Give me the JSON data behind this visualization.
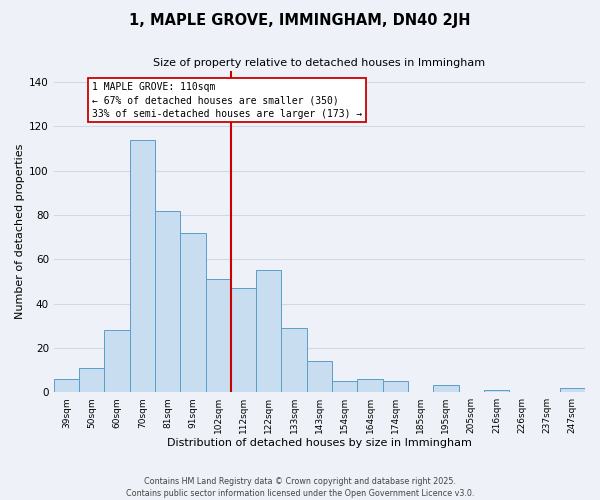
{
  "title": "1, MAPLE GROVE, IMMINGHAM, DN40 2JH",
  "subtitle": "Size of property relative to detached houses in Immingham",
  "xlabel": "Distribution of detached houses by size in Immingham",
  "ylabel": "Number of detached properties",
  "categories": [
    "39sqm",
    "50sqm",
    "60sqm",
    "70sqm",
    "81sqm",
    "91sqm",
    "102sqm",
    "112sqm",
    "122sqm",
    "133sqm",
    "143sqm",
    "154sqm",
    "164sqm",
    "174sqm",
    "185sqm",
    "195sqm",
    "205sqm",
    "216sqm",
    "226sqm",
    "237sqm",
    "247sqm"
  ],
  "values": [
    6,
    11,
    28,
    114,
    82,
    72,
    51,
    47,
    55,
    29,
    14,
    5,
    6,
    5,
    0,
    3,
    0,
    1,
    0,
    0,
    2
  ],
  "bar_color": "#c8ddef",
  "bar_edge_color": "#5a9ec8",
  "vline_color": "#cc0000",
  "vline_index": 7,
  "annotation_title": "1 MAPLE GROVE: 110sqm",
  "annotation_line1": "← 67% of detached houses are smaller (350)",
  "annotation_line2": "33% of semi-detached houses are larger (173) →",
  "box_facecolor": "white",
  "box_edgecolor": "#cc0000",
  "ylim": [
    0,
    145
  ],
  "yticks": [
    0,
    20,
    40,
    60,
    80,
    100,
    120,
    140
  ],
  "bg_color": "#eef2f8",
  "grid_color": "#d0d8e8",
  "footer1": "Contains HM Land Registry data © Crown copyright and database right 2025.",
  "footer2": "Contains public sector information licensed under the Open Government Licence v3.0."
}
